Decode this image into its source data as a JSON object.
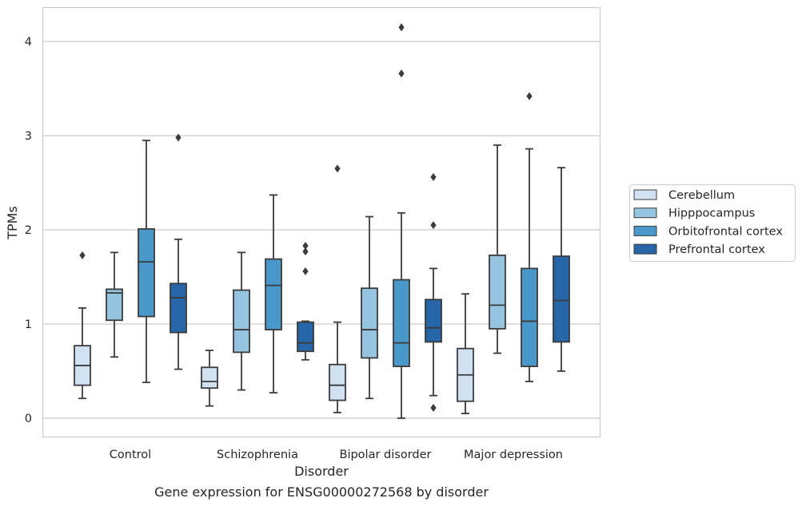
{
  "chart_data": {
    "type": "box",
    "caption": "Gene expression for ENSG00000272568 by disorder",
    "xlabel": "Disorder",
    "ylabel": "TPMs",
    "ylim": [
      -0.2,
      4.35
    ],
    "yticks": [
      0,
      1,
      2,
      3,
      4
    ],
    "grid": "horizontal",
    "legend_position": "right",
    "categories": [
      "Control",
      "Schizophrenia",
      "Bipolar disorder",
      "Major depression"
    ],
    "series": [
      {
        "name": "Cerebellum",
        "color": "#d0e1f2",
        "boxes": [
          {
            "whisker_low": 0.21,
            "q1": 0.35,
            "median": 0.56,
            "q3": 0.77,
            "whisker_high": 1.17,
            "outliers": [
              1.73
            ]
          },
          {
            "whisker_low": 0.13,
            "q1": 0.32,
            "median": 0.39,
            "q3": 0.54,
            "whisker_high": 0.72,
            "outliers": []
          },
          {
            "whisker_low": 0.06,
            "q1": 0.19,
            "median": 0.35,
            "q3": 0.57,
            "whisker_high": 1.02,
            "outliers": [
              2.65
            ]
          },
          {
            "whisker_low": 0.05,
            "q1": 0.18,
            "median": 0.46,
            "q3": 0.74,
            "whisker_high": 1.32,
            "outliers": []
          }
        ]
      },
      {
        "name": "Hipppocampus",
        "color": "#94c4df",
        "boxes": [
          {
            "whisker_low": 0.65,
            "q1": 1.04,
            "median": 1.33,
            "q3": 1.37,
            "whisker_high": 1.76,
            "outliers": []
          },
          {
            "whisker_low": 0.3,
            "q1": 0.7,
            "median": 0.94,
            "q3": 1.36,
            "whisker_high": 1.76,
            "outliers": []
          },
          {
            "whisker_low": 0.21,
            "q1": 0.64,
            "median": 0.94,
            "q3": 1.38,
            "whisker_high": 2.14,
            "outliers": []
          },
          {
            "whisker_low": 0.69,
            "q1": 0.95,
            "median": 1.2,
            "q3": 1.73,
            "whisker_high": 2.9,
            "outliers": []
          }
        ]
      },
      {
        "name": "Orbitofrontal cortex",
        "color": "#4a98c9",
        "boxes": [
          {
            "whisker_low": 0.38,
            "q1": 1.08,
            "median": 1.66,
            "q3": 2.01,
            "whisker_high": 2.95,
            "outliers": []
          },
          {
            "whisker_low": 0.27,
            "q1": 0.94,
            "median": 1.41,
            "q3": 1.69,
            "whisker_high": 2.37,
            "outliers": []
          },
          {
            "whisker_low": 0.0,
            "q1": 0.55,
            "median": 0.8,
            "q3": 1.47,
            "whisker_high": 2.18,
            "outliers": [
              3.66,
              4.15
            ]
          },
          {
            "whisker_low": 0.39,
            "q1": 0.55,
            "median": 1.03,
            "q3": 1.59,
            "whisker_high": 2.86,
            "outliers": [
              3.42
            ]
          }
        ]
      },
      {
        "name": "Prefrontal cortex",
        "color": "#2666a8",
        "boxes": [
          {
            "whisker_low": 0.52,
            "q1": 0.91,
            "median": 1.28,
            "q3": 1.43,
            "whisker_high": 1.9,
            "outliers": [
              2.98
            ]
          },
          {
            "whisker_low": 0.62,
            "q1": 0.71,
            "median": 0.8,
            "q3": 1.02,
            "whisker_high": 1.03,
            "outliers": [
              1.56,
              1.77,
              1.83
            ]
          },
          {
            "whisker_low": 0.24,
            "q1": 0.81,
            "median": 0.96,
            "q3": 1.26,
            "whisker_high": 1.59,
            "outliers": [
              0.11,
              2.05,
              2.56
            ]
          },
          {
            "whisker_low": 0.5,
            "q1": 0.81,
            "median": 1.25,
            "q3": 1.72,
            "whisker_high": 2.66,
            "outliers": []
          }
        ]
      }
    ]
  }
}
